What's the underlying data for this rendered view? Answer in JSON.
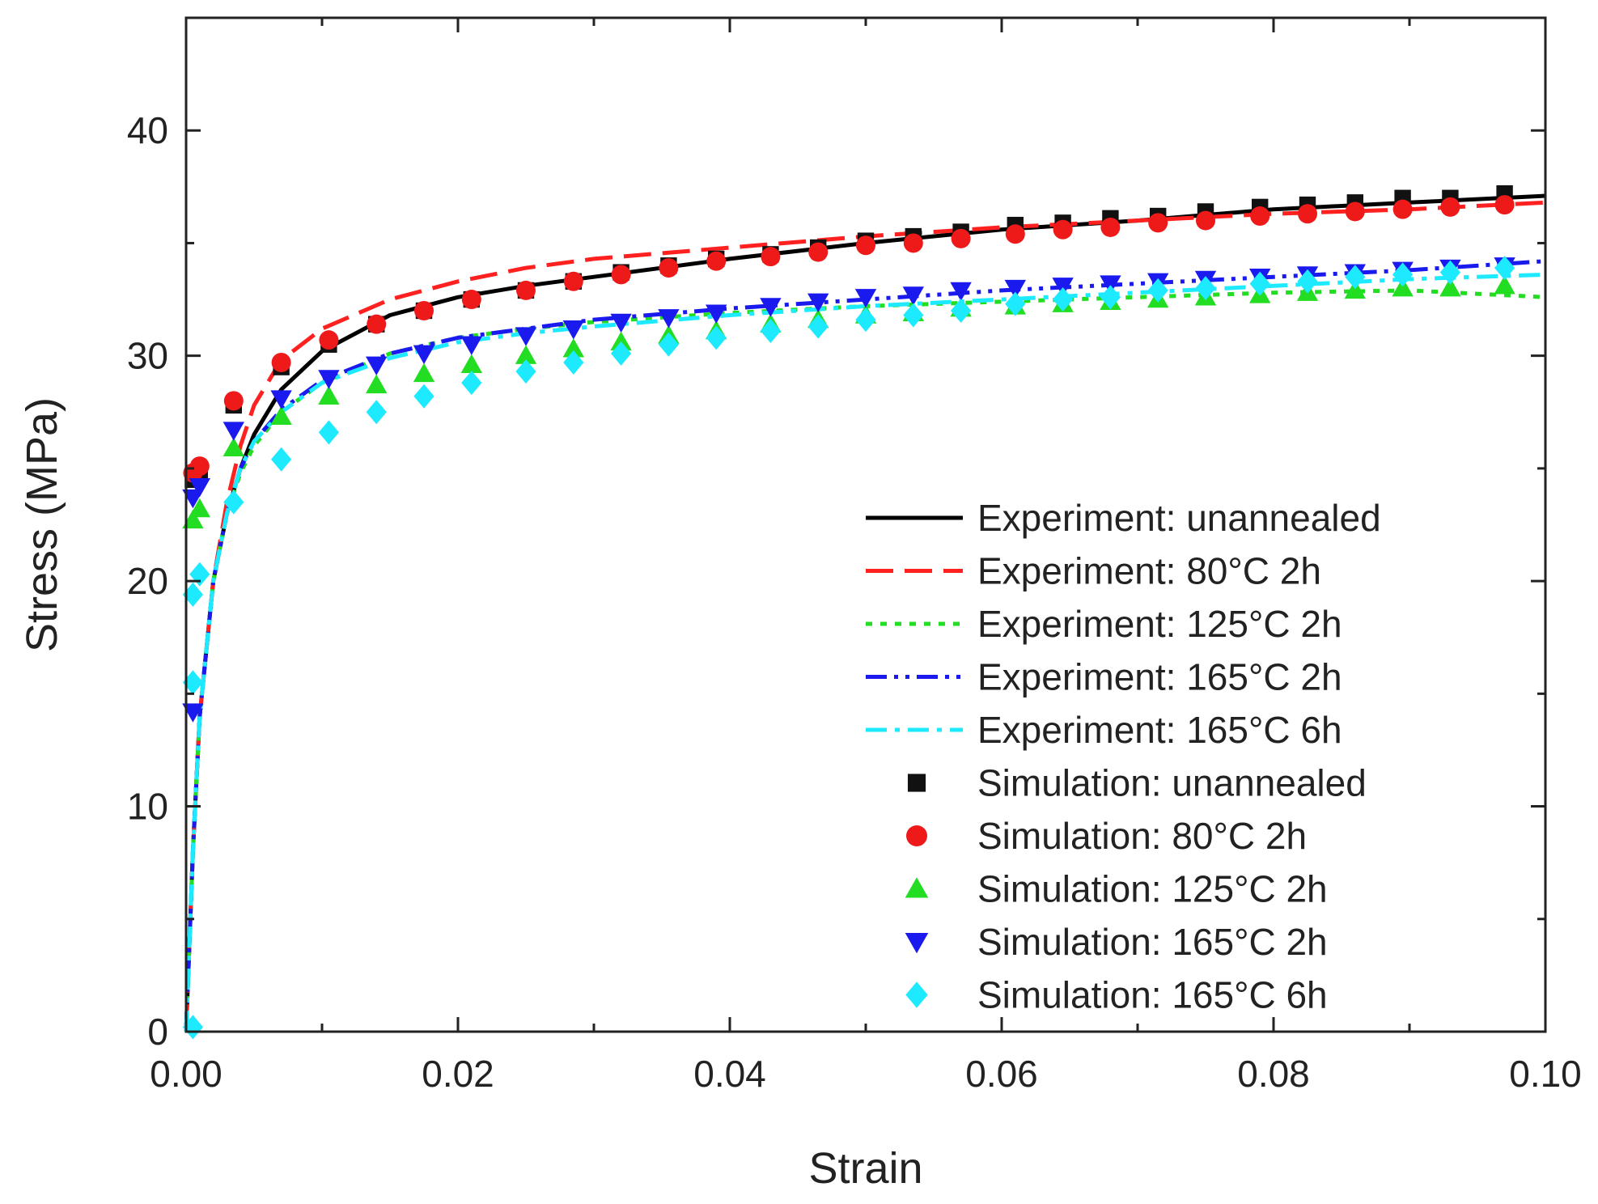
{
  "chart_data": {
    "type": "line",
    "title": "",
    "xlabel": "Strain",
    "ylabel": "Stress (MPa)",
    "xlim": [
      0.0,
      0.1
    ],
    "ylim": [
      0,
      45
    ],
    "x_ticks": [
      0.0,
      0.02,
      0.04,
      0.06,
      0.08,
      0.1
    ],
    "x_tick_labels": [
      "0.00",
      "0.02",
      "0.04",
      "0.06",
      "0.08",
      "0.10"
    ],
    "y_ticks": [
      0,
      10,
      20,
      30,
      40
    ],
    "y_tick_labels": [
      "0",
      "10",
      "20",
      "30",
      "40"
    ],
    "grid": false,
    "legend_position": "lower-right",
    "line_series": [
      {
        "name": "Experiment: unannealed",
        "color": "#000000",
        "dash": "solid",
        "x": [
          0,
          0.0005,
          0.001,
          0.002,
          0.003,
          0.004,
          0.005,
          0.007,
          0.01,
          0.015,
          0.02,
          0.025,
          0.03,
          0.04,
          0.05,
          0.06,
          0.07,
          0.08,
          0.09,
          0.1
        ],
        "y": [
          0,
          8,
          14,
          20,
          23,
          25,
          26.5,
          28.5,
          30.2,
          31.8,
          32.6,
          33.1,
          33.5,
          34.3,
          35.0,
          35.6,
          36.0,
          36.5,
          36.8,
          37.1
        ]
      },
      {
        "name": "Experiment: 80°C 2h",
        "color": "#ff2020",
        "dash": "long-dash",
        "x": [
          0,
          0.0005,
          0.001,
          0.002,
          0.003,
          0.004,
          0.005,
          0.007,
          0.01,
          0.015,
          0.02,
          0.025,
          0.03,
          0.04,
          0.05,
          0.06,
          0.07,
          0.08,
          0.09,
          0.1
        ],
        "y": [
          0,
          8,
          14,
          20,
          23.5,
          26,
          27.8,
          29.8,
          31.2,
          32.5,
          33.3,
          33.9,
          34.3,
          34.8,
          35.3,
          35.7,
          36.0,
          36.3,
          36.5,
          36.8
        ]
      },
      {
        "name": "Experiment: 125°C 2h",
        "color": "#22dd22",
        "dash": "dot",
        "x": [
          0,
          0.0005,
          0.001,
          0.002,
          0.003,
          0.004,
          0.005,
          0.007,
          0.01,
          0.015,
          0.02,
          0.025,
          0.03,
          0.04,
          0.05,
          0.06,
          0.07,
          0.08,
          0.09,
          0.1
        ],
        "y": [
          0,
          8,
          14,
          20,
          23,
          24.8,
          26,
          27.5,
          28.8,
          30.1,
          30.8,
          31.2,
          31.5,
          31.9,
          32.2,
          32.4,
          32.6,
          32.8,
          32.9,
          32.6
        ]
      },
      {
        "name": "Experiment: 165°C 2h",
        "color": "#1a1aee",
        "dash": "dash-dot-dot",
        "x": [
          0,
          0.0005,
          0.001,
          0.002,
          0.003,
          0.004,
          0.005,
          0.007,
          0.01,
          0.015,
          0.02,
          0.025,
          0.03,
          0.04,
          0.05,
          0.06,
          0.07,
          0.08,
          0.09,
          0.1
        ],
        "y": [
          0,
          8,
          14,
          20,
          23,
          25,
          26.2,
          27.6,
          28.9,
          30.1,
          30.8,
          31.2,
          31.6,
          32.1,
          32.5,
          32.9,
          33.2,
          33.5,
          33.8,
          34.2
        ]
      },
      {
        "name": "Experiment: 165°C 6h",
        "color": "#1de9ff",
        "dash": "dash-dot",
        "x": [
          0,
          0.0005,
          0.001,
          0.002,
          0.003,
          0.004,
          0.005,
          0.007,
          0.01,
          0.015,
          0.02,
          0.025,
          0.03,
          0.04,
          0.05,
          0.06,
          0.07,
          0.08,
          0.09,
          0.1
        ],
        "y": [
          0,
          8,
          14,
          20,
          23,
          25,
          26.2,
          27.5,
          28.8,
          29.9,
          30.6,
          31.0,
          31.3,
          31.8,
          32.2,
          32.5,
          32.8,
          33.1,
          33.4,
          33.6
        ]
      }
    ],
    "marker_series": [
      {
        "name": "Simulation: unannealed",
        "color": "#111111",
        "marker": "square",
        "x": [
          0.0005,
          0.001,
          0.0035,
          0.007,
          0.0105,
          0.014,
          0.0175,
          0.021,
          0.025,
          0.0285,
          0.032,
          0.0355,
          0.039,
          0.043,
          0.0465,
          0.05,
          0.0535,
          0.057,
          0.061,
          0.0645,
          0.068,
          0.0715,
          0.075,
          0.079,
          0.0825,
          0.086,
          0.0895,
          0.093,
          0.097
        ],
        "y": [
          24.5,
          24.9,
          27.8,
          29.5,
          30.5,
          31.4,
          32.0,
          32.5,
          32.9,
          33.3,
          33.7,
          34.0,
          34.3,
          34.5,
          34.8,
          35.1,
          35.3,
          35.5,
          35.8,
          35.9,
          36.1,
          36.2,
          36.4,
          36.6,
          36.7,
          36.8,
          37.0,
          37.0,
          37.2
        ]
      },
      {
        "name": "Simulation: 80°C 2h",
        "color": "#ee1a1a",
        "marker": "circle",
        "x": [
          0.0005,
          0.001,
          0.0035,
          0.007,
          0.0105,
          0.014,
          0.0175,
          0.021,
          0.025,
          0.0285,
          0.032,
          0.0355,
          0.039,
          0.043,
          0.0465,
          0.05,
          0.0535,
          0.057,
          0.061,
          0.0645,
          0.068,
          0.0715,
          0.075,
          0.079,
          0.0825,
          0.086,
          0.0895,
          0.093,
          0.097
        ],
        "y": [
          24.8,
          25.1,
          28.0,
          29.7,
          30.7,
          31.4,
          32.0,
          32.5,
          32.9,
          33.3,
          33.6,
          33.9,
          34.2,
          34.4,
          34.6,
          34.9,
          35.0,
          35.2,
          35.4,
          35.6,
          35.7,
          35.9,
          36.0,
          36.2,
          36.3,
          36.4,
          36.5,
          36.6,
          36.7
        ]
      },
      {
        "name": "Simulation: 125°C 2h",
        "color": "#22dd22",
        "marker": "triangle-up",
        "x": [
          0.0005,
          0.001,
          0.0035,
          0.007,
          0.0105,
          0.014,
          0.0175,
          0.021,
          0.025,
          0.0285,
          0.032,
          0.0355,
          0.039,
          0.043,
          0.0465,
          0.05,
          0.0535,
          0.057,
          0.061,
          0.0645,
          0.068,
          0.0715,
          0.075,
          0.079,
          0.0825,
          0.086,
          0.0895,
          0.093,
          0.097
        ],
        "y": [
          22.7,
          23.2,
          25.9,
          27.3,
          28.2,
          28.7,
          29.2,
          29.6,
          30.0,
          30.3,
          30.6,
          30.9,
          31.1,
          31.4,
          31.6,
          31.8,
          31.9,
          32.1,
          32.2,
          32.3,
          32.4,
          32.5,
          32.6,
          32.7,
          32.8,
          32.9,
          33.0,
          33.0,
          33.1
        ]
      },
      {
        "name": "Simulation: 165°C 2h",
        "color": "#1a1aee",
        "marker": "triangle-down",
        "x": [
          0.0005,
          0.001,
          0.0035,
          0.007,
          0.0105,
          0.014,
          0.0175,
          0.021,
          0.025,
          0.0285,
          0.032,
          0.0355,
          0.039,
          0.043,
          0.0465,
          0.05,
          0.0535,
          0.057,
          0.061,
          0.0645,
          0.068,
          0.0715,
          0.075,
          0.079,
          0.0825,
          0.086,
          0.0895,
          0.093,
          0.097
        ],
        "y": [
          23.7,
          24.2,
          26.7,
          28.1,
          29.0,
          29.6,
          30.1,
          30.5,
          30.9,
          31.2,
          31.5,
          31.7,
          31.9,
          32.2,
          32.4,
          32.6,
          32.7,
          32.9,
          33.0,
          33.1,
          33.2,
          33.3,
          33.4,
          33.5,
          33.6,
          33.7,
          33.8,
          33.9,
          34.0
        ]
      },
      {
        "name": "Simulation: 165°C 6h",
        "color": "#1de9ff",
        "marker": "diamond",
        "x": [
          0.0005,
          0.001,
          0.0035,
          0.007,
          0.0105,
          0.014,
          0.0175,
          0.021,
          0.025,
          0.0285,
          0.032,
          0.0355,
          0.039,
          0.043,
          0.0465,
          0.05,
          0.0535,
          0.057,
          0.061,
          0.0645,
          0.068,
          0.0715,
          0.075,
          0.079,
          0.0825,
          0.086,
          0.0895,
          0.093,
          0.097
        ],
        "y": [
          19.4,
          20.3,
          23.5,
          25.4,
          26.6,
          27.5,
          28.2,
          28.8,
          29.3,
          29.7,
          30.1,
          30.5,
          30.8,
          31.1,
          31.3,
          31.6,
          31.8,
          32.0,
          32.3,
          32.5,
          32.6,
          32.9,
          33.0,
          33.2,
          33.3,
          33.5,
          33.6,
          33.7,
          33.9
        ]
      }
    ],
    "low_markers": [
      {
        "series": "Simulation: 165°C 2h",
        "x": 0.0005,
        "y": 14.2
      },
      {
        "series": "Simulation: 165°C 6h",
        "x": 0.0005,
        "y": 15.5
      },
      {
        "series": "Simulation: 165°C 6h",
        "x": 0.0005,
        "y": 0.2
      }
    ]
  }
}
